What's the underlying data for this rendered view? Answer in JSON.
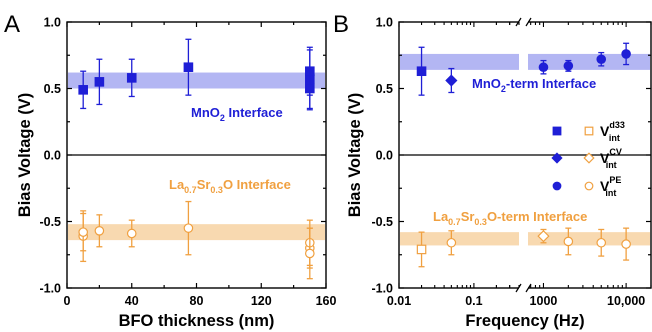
{
  "colors": {
    "blue": "#1f1fd6",
    "orange": "#f0a040",
    "blue_band": "#b3b6f3",
    "orange_band": "#f8d9b0",
    "axis": "#000000"
  },
  "chart_data": [
    {
      "panel": "A",
      "type": "scatter",
      "xlabel": "BFO thickness (nm)",
      "ylabel": "Bias Voltage (V)",
      "xlim": [
        0,
        160
      ],
      "ylim": [
        -1.0,
        1.0
      ],
      "xticks": [
        "0",
        "40",
        "80",
        "120",
        "160"
      ],
      "yticks": [
        "-1.0",
        "-0.5",
        "0.0",
        "0.5",
        "1.0"
      ],
      "zero_line": true,
      "annotations": {
        "top": {
          "pre": "MnO",
          "sub": "2",
          "post": " Interface"
        },
        "bottom": {
          "pre": "La",
          "sub1": "0.7",
          "mid": "Sr",
          "sub2": "0.3",
          "post": "O Interface"
        }
      },
      "bands": [
        {
          "series": "MnO2 Interface",
          "ymin": 0.5,
          "ymax": 0.62,
          "color": "blue_band"
        },
        {
          "series": "La0.7Sr0.3O Interface",
          "ymin": -0.64,
          "ymax": -0.52,
          "color": "orange_band"
        }
      ],
      "series": [
        {
          "marker": "square-filled",
          "color": "blue",
          "points": [
            {
              "x": 10,
              "y": 0.49,
              "yerr": 0.14
            },
            {
              "x": 20,
              "y": 0.55,
              "yerr": 0.17
            },
            {
              "x": 40,
              "y": 0.58,
              "yerr": 0.14
            },
            {
              "x": 75,
              "y": 0.66,
              "yerr": 0.21
            },
            {
              "x": 150,
              "y": 0.63,
              "yerr": 0.18
            },
            {
              "x": 150,
              "y": 0.57,
              "yerr": 0.22
            },
            {
              "x": 150,
              "y": 0.5,
              "yerr": 0.16
            }
          ]
        },
        {
          "marker": "circle-open",
          "color": "orange",
          "points": [
            {
              "x": 10,
              "y": -0.61,
              "yerr": 0.19
            },
            {
              "x": 10,
              "y": -0.58,
              "yerr": 0.14
            },
            {
              "x": 20,
              "y": -0.57,
              "yerr": 0.12
            },
            {
              "x": 40,
              "y": -0.59,
              "yerr": 0.1
            },
            {
              "x": 75,
              "y": -0.55,
              "yerr": 0.2
            },
            {
              "x": 150,
              "y": -0.7,
              "yerr": 0.15
            },
            {
              "x": 150,
              "y": -0.66,
              "yerr": 0.17
            },
            {
              "x": 150,
              "y": -0.74,
              "yerr": 0.19
            }
          ]
        }
      ]
    },
    {
      "panel": "B",
      "type": "scatter",
      "xlabel": "Frequency (Hz)",
      "ylabel": "Bias Voltage (V)",
      "xscale": "log",
      "xlim": [
        0.01,
        20000
      ],
      "ylim": [
        -1.0,
        1.0
      ],
      "xticks": [
        "0.01",
        "0.1",
        "1000",
        "10,000"
      ],
      "xtick_values": [
        0.01,
        0.1,
        1000,
        10000
      ],
      "axis_break_between": [
        0.4,
        650
      ],
      "yticks": [
        "-1.0",
        "-0.5",
        "0.0",
        "0.5",
        "1.0"
      ],
      "zero_line": true,
      "annotations": {
        "top": {
          "pre": "MnO",
          "sub": "2",
          "post": "-term Interface"
        },
        "bottom": {
          "pre": "La",
          "sub1": "0.7",
          "mid": "Sr",
          "sub2": "0.3",
          "post": "O-term Interface"
        }
      },
      "bands": [
        {
          "series": "MnO2-term Interface",
          "ymin": 0.64,
          "ymax": 0.76,
          "color": "blue_band"
        },
        {
          "series": "La0.7Sr0.3O-term Interface",
          "ymin": -0.68,
          "ymax": -0.58,
          "color": "orange_band"
        }
      ],
      "legend": {
        "placement": "right",
        "entries": [
          {
            "label": "V",
            "sup": "d33",
            "sub": "int",
            "filled_marker": "square",
            "open_marker": "square"
          },
          {
            "label": "V",
            "sup": "CV",
            "sub": "int",
            "filled_marker": "diamond",
            "open_marker": "diamond"
          },
          {
            "label": "V",
            "sup": "PE",
            "sub": "int",
            "filled_marker": "circle",
            "open_marker": "circle"
          }
        ]
      },
      "series": [
        {
          "name": "V_int^d33 (MnO2)",
          "marker": "square-filled",
          "color": "blue",
          "points": [
            {
              "x": 0.02,
              "y": 0.63,
              "yerr": 0.18
            }
          ]
        },
        {
          "name": "V_int^CV (MnO2)",
          "marker": "diamond-filled",
          "color": "blue",
          "points": [
            {
              "x": 0.05,
              "y": 0.56,
              "yerr": 0.09
            }
          ]
        },
        {
          "name": "V_int^PE (MnO2)",
          "marker": "circle-filled",
          "color": "blue",
          "points": [
            {
              "x": 1000,
              "y": 0.66,
              "yerr": 0.05
            },
            {
              "x": 2000,
              "y": 0.67,
              "yerr": 0.04
            },
            {
              "x": 5000,
              "y": 0.72,
              "yerr": 0.05
            },
            {
              "x": 10000,
              "y": 0.76,
              "yerr": 0.08
            }
          ]
        },
        {
          "name": "V_int^d33 (La0.7Sr0.3O)",
          "marker": "square-open",
          "color": "orange",
          "points": [
            {
              "x": 0.02,
              "y": -0.71,
              "yerr": 0.13
            }
          ]
        },
        {
          "name": "V_int^CV (La0.7Sr0.3O)",
          "marker": "diamond-open",
          "color": "orange",
          "points": [
            {
              "x": 1000,
              "y": -0.61,
              "yerr": 0.05
            }
          ]
        },
        {
          "name": "V_int^PE (La0.7Sr0.3O)",
          "marker": "circle-open",
          "color": "orange",
          "points": [
            {
              "x": 0.05,
              "y": -0.66,
              "yerr": 0.09
            },
            {
              "x": 2000,
              "y": -0.65,
              "yerr": 0.1
            },
            {
              "x": 5000,
              "y": -0.66,
              "yerr": 0.1
            },
            {
              "x": 10000,
              "y": -0.67,
              "yerr": 0.12
            }
          ]
        }
      ]
    }
  ]
}
